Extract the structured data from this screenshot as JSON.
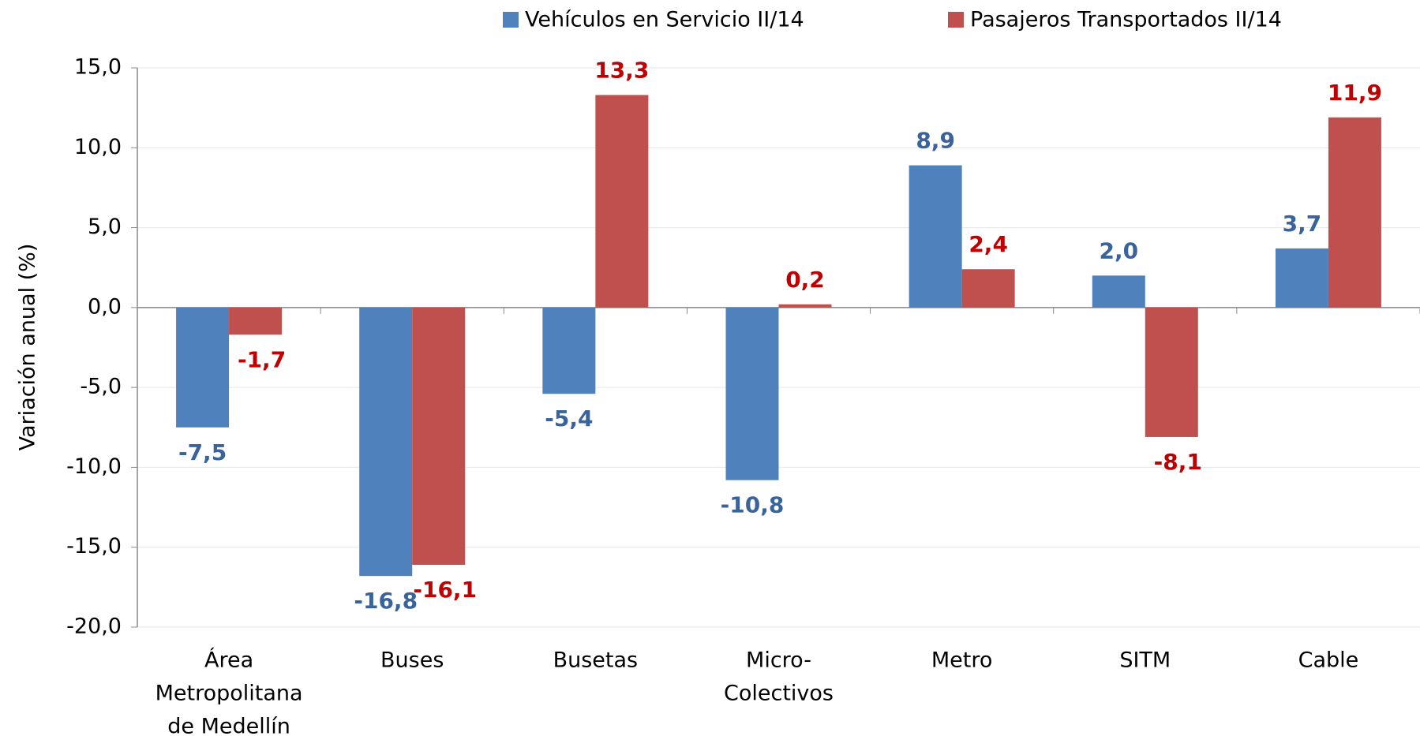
{
  "chart_data": {
    "type": "bar",
    "y_label": "Variación anual (%)",
    "categories": [
      [
        "Área",
        "Metropolitana",
        "de Medellín"
      ],
      [
        "Buses"
      ],
      [
        "Busetas"
      ],
      [
        "Micro-",
        "Colectivos"
      ],
      [
        "Metro"
      ],
      [
        "SITM"
      ],
      [
        "Cable"
      ]
    ],
    "series": [
      {
        "name": "Vehículos en Servicio II/14",
        "color": "#4f81bd",
        "label_color": "#3a639a",
        "values": [
          -7.5,
          -16.8,
          -5.4,
          -10.8,
          8.9,
          2.0,
          3.7
        ],
        "value_labels": [
          "-7,5",
          "-16,8",
          "-5,4",
          "-10,8",
          "8,9",
          "2,0",
          "3,7"
        ]
      },
      {
        "name": "Pasajeros Transportados II/14",
        "color": "#c0504d",
        "label_color": "#c00000",
        "values": [
          -1.7,
          -16.1,
          13.3,
          0.2,
          2.4,
          -8.1,
          11.9
        ],
        "value_labels": [
          "-1,7",
          "-16,1",
          "13,3",
          "0,2",
          "2,4",
          "-8,1",
          "11,9"
        ]
      }
    ],
    "ylim": [
      -20,
      15
    ],
    "yticks": [
      {
        "value": -20,
        "label": "-20,0"
      },
      {
        "value": -15,
        "label": "-15,0"
      },
      {
        "value": -10,
        "label": "-10,0"
      },
      {
        "value": -5,
        "label": "-5,0"
      },
      {
        "value": 0,
        "label": "0,0"
      },
      {
        "value": 5,
        "label": "5,0"
      },
      {
        "value": 10,
        "label": "10,0"
      },
      {
        "value": 15,
        "label": "15,0"
      }
    ],
    "grid": true,
    "legend": "top"
  }
}
